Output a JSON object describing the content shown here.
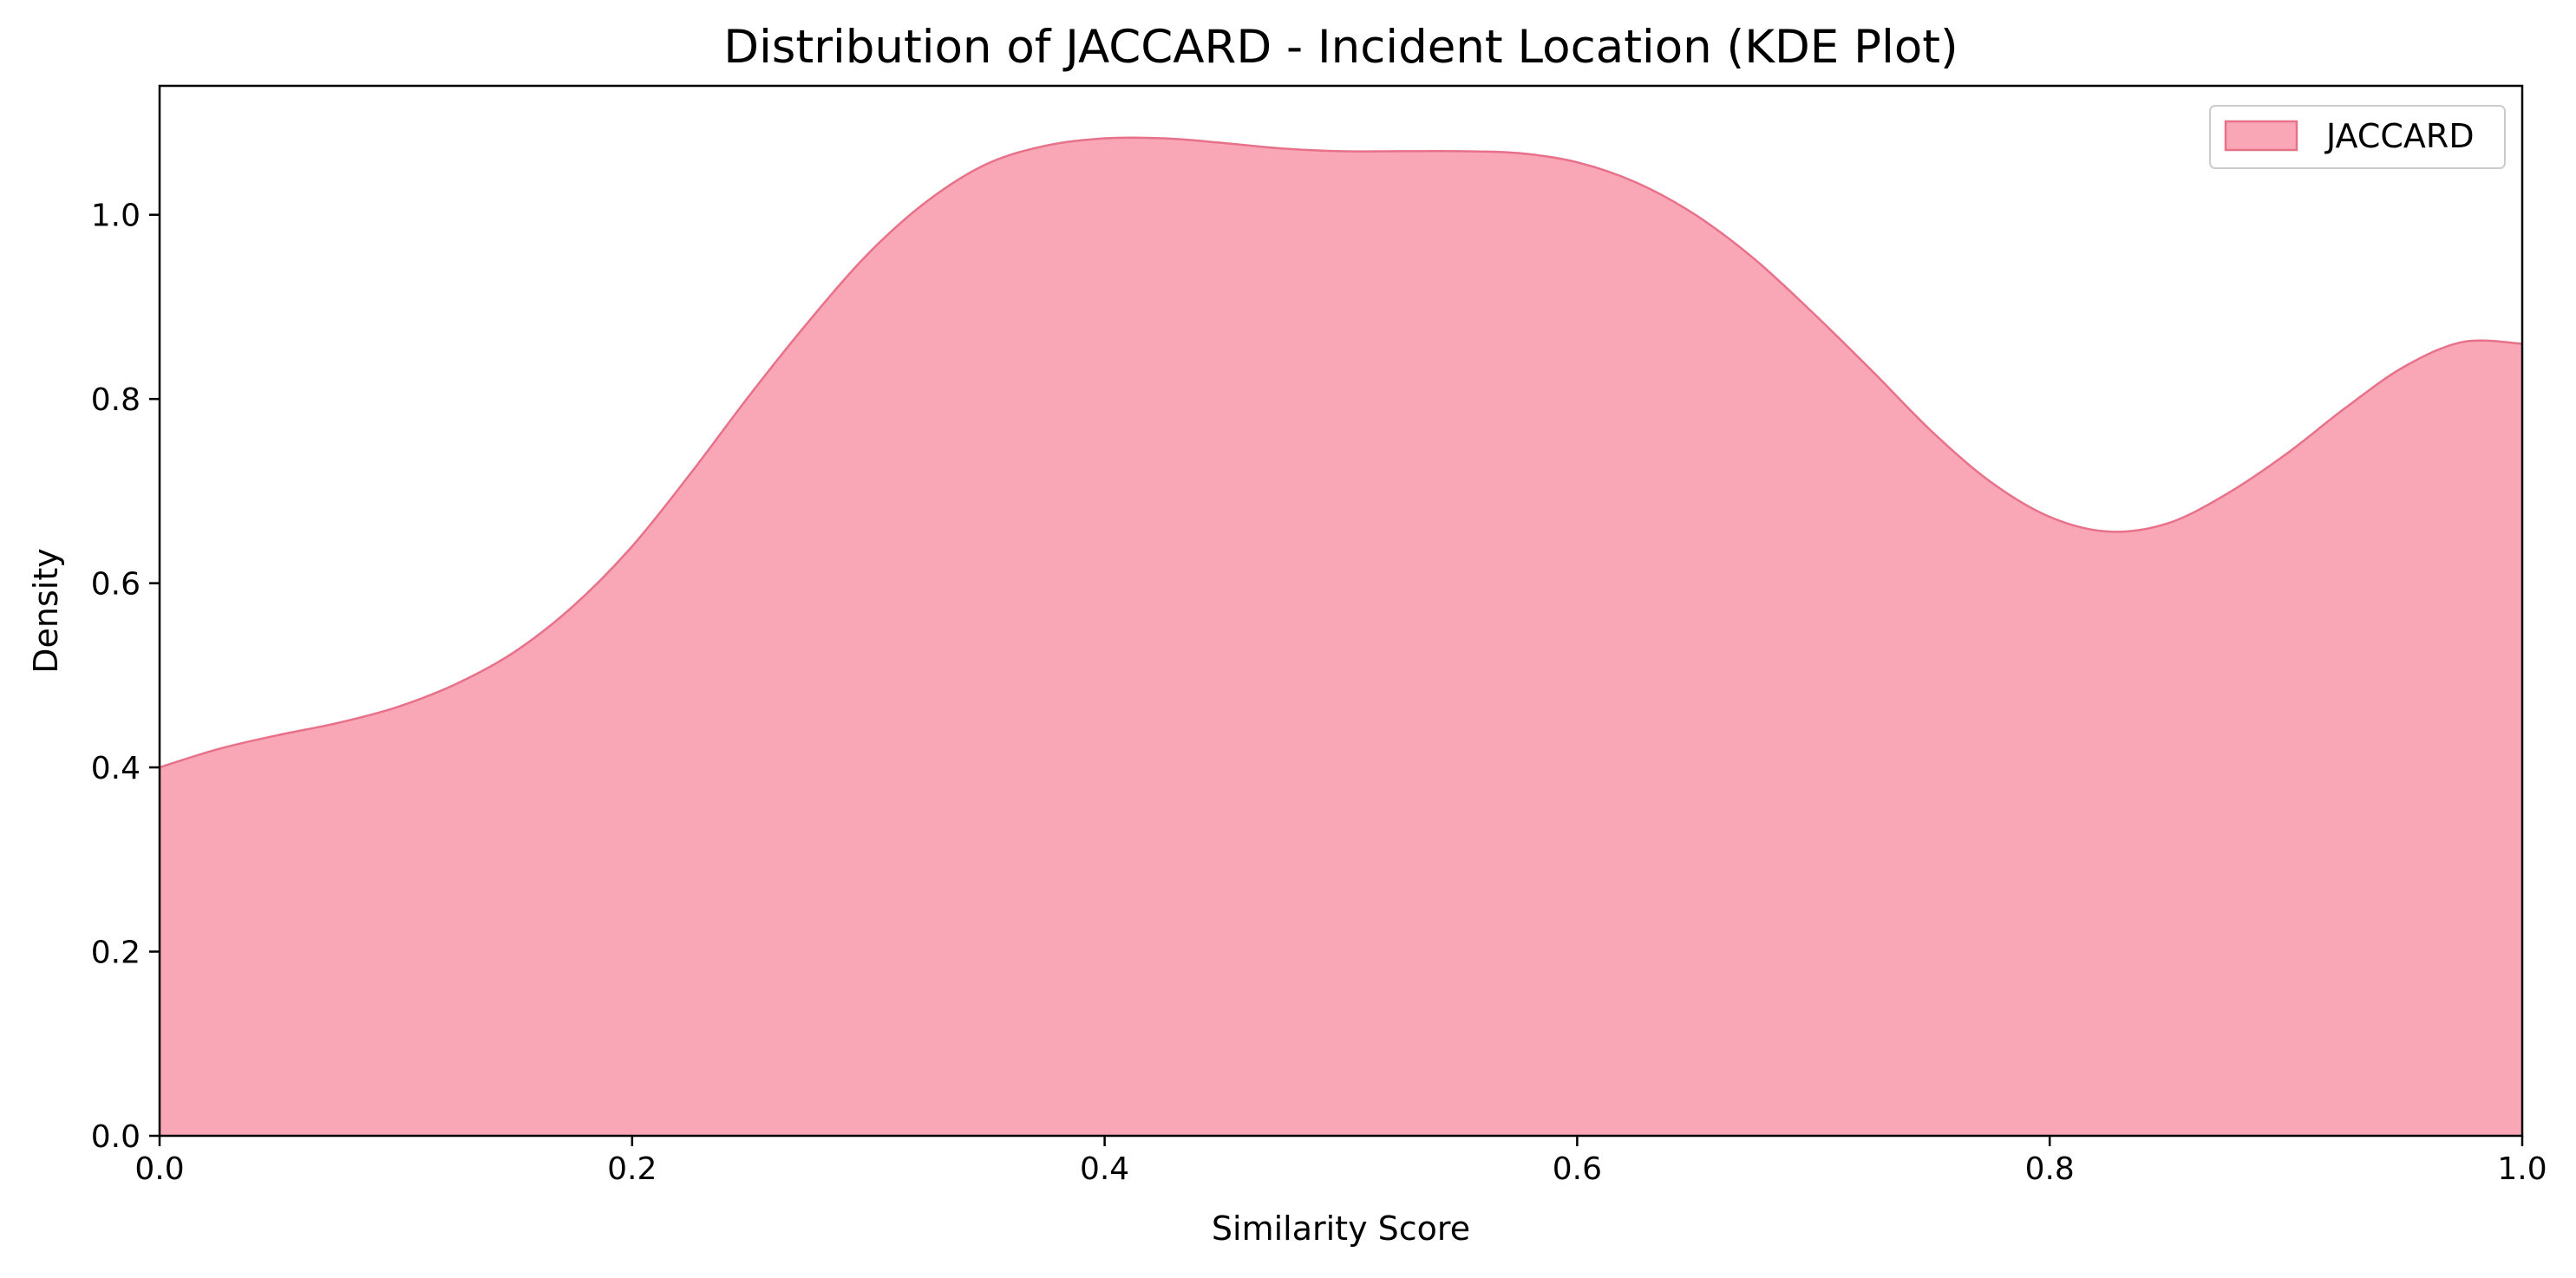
{
  "chart_data": {
    "type": "area",
    "title": "Distribution of JACCARD - Incident Location (KDE Plot)",
    "xlabel": "Similarity Score",
    "ylabel": "Density",
    "xlim": [
      0.0,
      1.0
    ],
    "ylim": [
      0.0,
      1.14
    ],
    "xticks": [
      "0.0",
      "0.2",
      "0.4",
      "0.6",
      "0.8",
      "1.0"
    ],
    "yticks": [
      "0.0",
      "0.2",
      "0.4",
      "0.6",
      "0.8",
      "1.0"
    ],
    "grid": false,
    "legend_position": "top-right",
    "series": [
      {
        "name": "JACCARD",
        "fill_color": "#f9a7b7",
        "line_color": "#e8718a",
        "x": [
          0.0,
          0.025,
          0.05,
          0.075,
          0.1,
          0.125,
          0.15,
          0.175,
          0.2,
          0.225,
          0.25,
          0.275,
          0.3,
          0.325,
          0.35,
          0.375,
          0.4,
          0.425,
          0.45,
          0.475,
          0.5,
          0.525,
          0.55,
          0.575,
          0.6,
          0.625,
          0.65,
          0.675,
          0.7,
          0.725,
          0.75,
          0.775,
          0.8,
          0.825,
          0.85,
          0.875,
          0.9,
          0.925,
          0.95,
          0.975,
          1.0
        ],
        "y": [
          0.4,
          0.42,
          0.435,
          0.448,
          0.465,
          0.49,
          0.525,
          0.575,
          0.64,
          0.72,
          0.805,
          0.885,
          0.958,
          1.015,
          1.055,
          1.075,
          1.083,
          1.083,
          1.078,
          1.072,
          1.069,
          1.069,
          1.069,
          1.067,
          1.057,
          1.035,
          1.0,
          0.952,
          0.893,
          0.83,
          0.765,
          0.71,
          0.672,
          0.656,
          0.665,
          0.697,
          0.74,
          0.79,
          0.835,
          0.862,
          0.86
        ]
      }
    ]
  }
}
